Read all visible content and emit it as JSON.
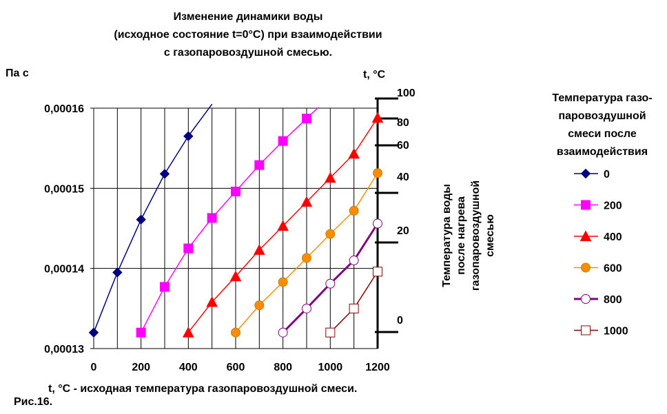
{
  "title_lines": [
    "Изменение динамики воды",
    "(исходное состояние t=0°С) при взаимодействии",
    "с газопаровоздушной смесью."
  ],
  "y_unit": "Па с",
  "right_unit": "t, °С",
  "x_label": "t, °С - исходная температура газопаровоздушной смеси.",
  "fig_caption": "Рис.16.",
  "right_axis_label_lines": [
    "Температура воды",
    "после нагрева",
    "газопаровоздушной",
    "смесью"
  ],
  "legend_title_lines": [
    "Температура газо-",
    "паровоздушной",
    "смеси  после",
    "взаимодействия"
  ],
  "colors": {
    "s0": "#000080",
    "s200": "#FF00FF",
    "s400": "#FF0000",
    "s600": "#FF8C00",
    "s800": "#800080",
    "s1000": "#8B0000"
  },
  "chart_data": {
    "type": "line",
    "x_ticks": [
      "0",
      "200",
      "400",
      "600",
      "800",
      "1000",
      "1200"
    ],
    "y_ticks": [
      "0,00013",
      "0,00014",
      "0,00015",
      "0,00016"
    ],
    "right_ticks": [
      "0",
      "20",
      "40",
      "60",
      "80",
      "100"
    ],
    "right_tick_values": [
      0,
      20,
      40,
      60,
      80,
      100
    ],
    "xlim": [
      0,
      1200
    ],
    "ylim": [
      0.00013,
      0.00016
    ],
    "grid": true,
    "legend_position": "right",
    "series": [
      {
        "name": "0",
        "color": "#000080",
        "marker": "diamond",
        "x": [
          0,
          100,
          200,
          300,
          400,
          500
        ],
        "y": [
          0.000132,
          0.0001395,
          0.0001461,
          0.0001518,
          0.0001565,
          0.0001605
        ]
      },
      {
        "name": "200",
        "color": "#FF00FF",
        "marker": "square",
        "x": [
          200,
          300,
          400,
          500,
          600,
          700,
          800,
          900,
          950
        ],
        "y": [
          0.000132,
          0.0001377,
          0.0001425,
          0.0001463,
          0.0001496,
          0.0001529,
          0.0001559,
          0.0001587,
          0.0001601
        ]
      },
      {
        "name": "400",
        "color": "#FF0000",
        "marker": "triangle",
        "x": [
          400,
          500,
          600,
          700,
          800,
          900,
          1000,
          1100,
          1200
        ],
        "y": [
          0.000132,
          0.0001358,
          0.000139,
          0.0001423,
          0.0001453,
          0.0001483,
          0.0001513,
          0.0001543,
          0.0001588
        ]
      },
      {
        "name": "600",
        "color": "#FF8C00",
        "marker": "circle",
        "x": [
          600,
          700,
          800,
          900,
          1000,
          1100,
          1200
        ],
        "y": [
          0.000132,
          0.0001354,
          0.0001383,
          0.0001413,
          0.0001443,
          0.0001472,
          0.0001519
        ]
      },
      {
        "name": "800",
        "color": "#800080",
        "marker": "hollow-circle",
        "x": [
          800,
          900,
          1000,
          1100,
          1200
        ],
        "y": [
          0.000132,
          0.000135,
          0.0001381,
          0.000141,
          0.0001456
        ]
      },
      {
        "name": "1000",
        "color": "#8B0000",
        "marker": "hollow-square",
        "x": [
          1000,
          1100,
          1200
        ],
        "y": [
          0.000132,
          0.000135,
          0.0001396
        ]
      }
    ]
  }
}
